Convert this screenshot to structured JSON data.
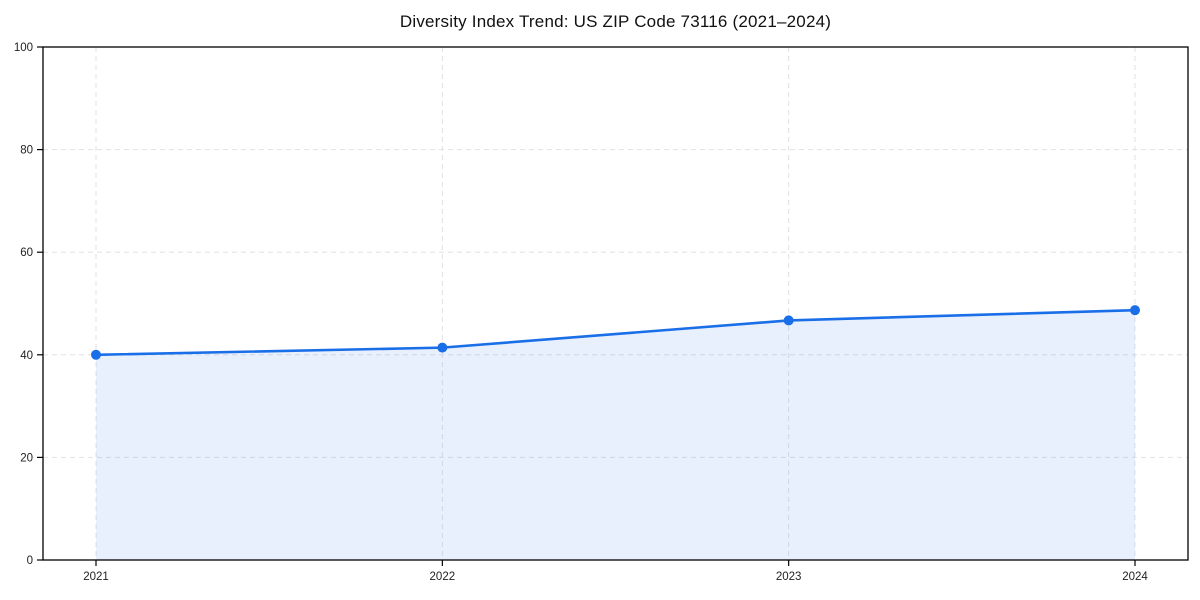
{
  "page": {
    "background_color": "#ffffff"
  },
  "chart_data": {
    "type": "area",
    "title": "Diversity Index Trend: US ZIP Code 73116 (2021–2024)",
    "categories": [
      "2021",
      "2022",
      "2023",
      "2024"
    ],
    "series": [
      {
        "name": "Diversity Index",
        "values": [
          40.0,
          41.4,
          46.7,
          48.7
        ]
      }
    ],
    "xlabel": "",
    "ylabel": "",
    "ylim": [
      0,
      100
    ],
    "yticks": [
      0,
      20,
      40,
      60,
      80,
      100
    ],
    "grid": true,
    "grid_style": "dashed",
    "legend": false,
    "marker": "circle",
    "colors": {
      "line": "#1a6fe8",
      "marker": "#1a6fe8",
      "area_fill": "rgba(26,111,232,0.10)",
      "grid": "#e2e2e2",
      "axis": "#000000",
      "tick_label": "#222222",
      "title": "#111111"
    }
  }
}
